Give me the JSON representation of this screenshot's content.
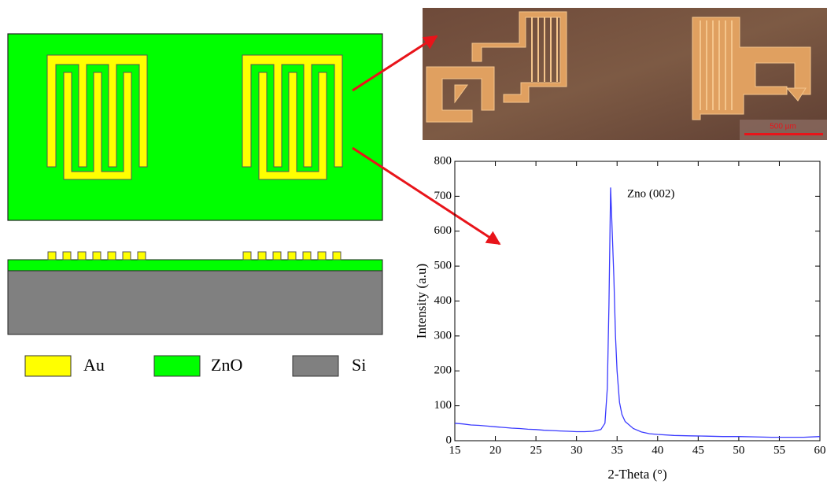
{
  "chart_data": {
    "type": "line",
    "xlabel": "2-Theta (°)",
    "ylabel": "Intensity (a.u)",
    "annotation": "Zno (002)",
    "x": [
      15,
      16,
      17,
      18,
      19,
      20,
      21,
      22,
      23,
      24,
      25,
      26,
      27,
      28,
      29,
      30,
      31,
      32,
      33,
      33.5,
      33.8,
      34.0,
      34.2,
      34.4,
      34.6,
      34.8,
      35.0,
      35.3,
      35.6,
      36,
      37,
      38,
      39,
      40,
      42,
      44,
      46,
      48,
      50,
      52,
      54,
      56,
      58,
      60
    ],
    "series": [
      {
        "color": "#3a3aff",
        "values": [
          50,
          48,
          45,
          44,
          42,
          40,
          38,
          36,
          35,
          33,
          32,
          30,
          29,
          28,
          27,
          26,
          26,
          27,
          32,
          50,
          150,
          390,
          725,
          600,
          470,
          300,
          200,
          110,
          75,
          55,
          35,
          25,
          20,
          18,
          15,
          14,
          13,
          12,
          12,
          11,
          10,
          10,
          10,
          12
        ]
      }
    ],
    "xlim": [
      15,
      60
    ],
    "xticks": [
      15,
      20,
      25,
      30,
      35,
      40,
      45,
      50,
      55,
      60
    ],
    "ylim": [
      0,
      800
    ],
    "yticks": [
      0,
      100,
      200,
      300,
      400,
      500,
      600,
      700,
      800
    ]
  },
  "diagram": {
    "legend": [
      "Au",
      "ZnO",
      "Si"
    ],
    "scale_bar": "500 µm"
  }
}
